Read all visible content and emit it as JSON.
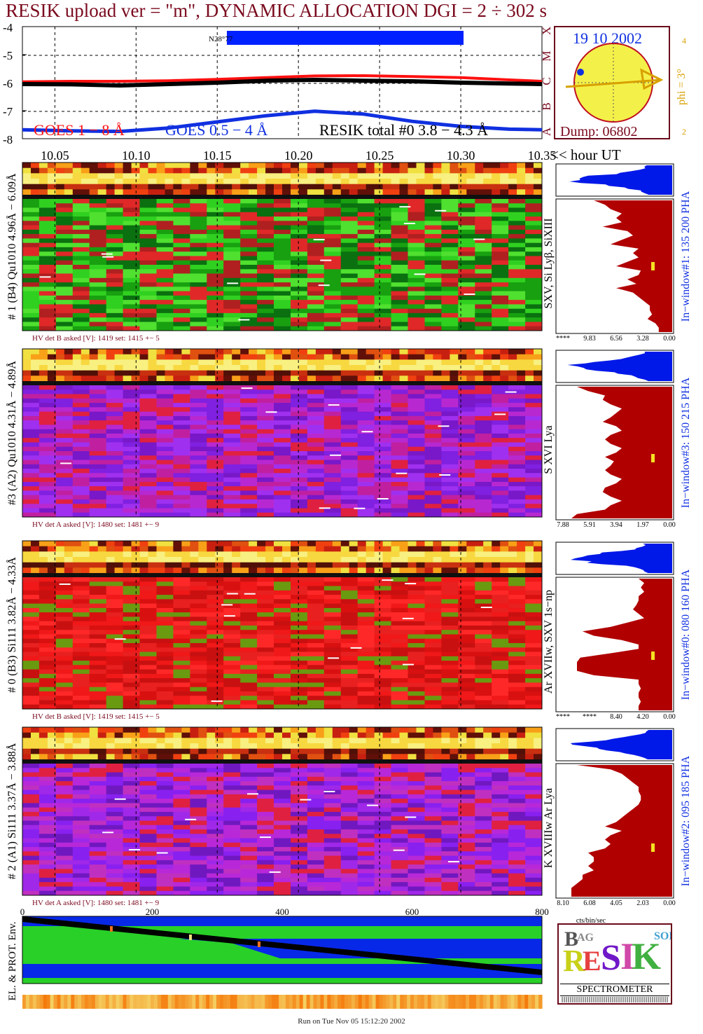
{
  "title": "RESIK upload ver = \"m\", DYNAMIC ALLOCATION  DGI =   2 ÷ 302 s",
  "footer": "Run on Tue Nov 05 15:12:20 2002",
  "colors": {
    "title": "#7a0a1e",
    "goes1": "#ff1010",
    "goes05": "#1030e0",
    "resik": "#000000",
    "spectrum": "#b00000",
    "pha_top": "#0018e8",
    "bar": "#0020ff"
  },
  "top_panel": {
    "yticks": [
      "-4",
      "-5",
      "-6",
      "-7",
      "-8"
    ],
    "class_labels": [
      "X",
      "M",
      "C",
      "B",
      "A"
    ],
    "bar_label": "N28°77",
    "legend": {
      "goes1": "GOES 1 − 8 Å",
      "goes05": "GOES 0.5 − 4 Å",
      "resik": "RESIK total #0  3.8 − 4.3 Å"
    },
    "xticks": [
      "10.05",
      "10.10",
      "10.15",
      "10.20",
      "10.25",
      "10.30",
      "10.35"
    ],
    "x_unit": "<< hour UT"
  },
  "sun_panel": {
    "date": "19 10 2002",
    "dump": "Dump: 06802",
    "phi": "phi =  3°",
    "tick_top": "4",
    "tick_bottom": "2"
  },
  "chart_data": {
    "type": "line",
    "x": [
      10.03,
      10.06,
      10.09,
      10.12,
      10.15,
      10.18,
      10.21,
      10.24,
      10.27,
      10.3,
      10.33,
      10.35
    ],
    "series": [
      {
        "name": "GOES 1 − 8 Å",
        "values": [
          -5.97,
          -5.95,
          -5.95,
          -5.93,
          -5.88,
          -5.82,
          -5.76,
          -5.75,
          -5.78,
          -5.82,
          -5.9,
          -5.95
        ]
      },
      {
        "name": "GOES 0.5 − 4 Å",
        "values": [
          -7.68,
          -7.72,
          -7.74,
          -7.62,
          -7.4,
          -7.18,
          -7.02,
          -7.12,
          -7.38,
          -7.56,
          -7.66,
          -7.68
        ]
      },
      {
        "name": "RESIK total #0  3.8 − 4.3 Å",
        "values": [
          -6.05,
          -6.06,
          -6.1,
          -6.05,
          -6.0,
          -5.93,
          -5.9,
          -5.93,
          -5.95,
          -6.0,
          -6.03,
          -6.05
        ]
      }
    ],
    "ylim": [
      -8,
      -4
    ]
  },
  "panels": [
    {
      "left_label": "# 1 (B4) Qu1010 4.96Å − 6.09Å",
      "right_label": "SXV, Si Lyβ, SiXIII",
      "window_label": "In−window#1:  135 200 PHA",
      "hv": "HV det B asked [V]:  1419 set:  1415 +−    5",
      "axis": [
        "****",
        "9.83",
        "6.56",
        "3.28",
        "0.00"
      ],
      "scheme": "green",
      "spectrum": [
        0.7,
        0.6,
        0.55,
        0.45,
        0.5,
        0.45,
        0.62,
        0.4,
        0.35,
        0.45,
        0.55,
        0.3,
        0.35,
        0.3,
        0.4,
        0.5,
        0.28,
        0.3,
        0.4,
        0.32,
        0.5,
        0.35,
        0.3,
        0.25,
        0.2,
        0.2,
        0.18,
        0.22,
        0.15,
        0.12,
        0.12
      ]
    },
    {
      "left_label": "#3 (A2) Qu1010  4.31Å − 4.89Å",
      "right_label": "S XVI Lya",
      "window_label": "In−window#3:  150 215 PHA",
      "hv": "HV det A asked [V]:  1480 set:  1481 +−    9",
      "axis": [
        "7.88",
        "5.91",
        "3.94",
        "1.97",
        "0.00"
      ],
      "scheme": "purple",
      "spectrum": [
        0.85,
        0.75,
        0.6,
        0.62,
        0.55,
        0.45,
        0.5,
        0.55,
        0.62,
        0.5,
        0.45,
        0.55,
        0.6,
        0.55,
        0.45,
        0.5,
        0.6,
        0.52,
        0.55,
        0.6,
        0.55,
        0.45,
        0.5,
        0.6,
        0.62,
        0.55,
        0.45,
        0.55,
        0.6,
        0.85,
        0.9
      ]
    },
    {
      "left_label": "# 0 (B3) Si111  3.82Å − 4.33Å",
      "right_label": "Ar XVIIw, SXV 1s−np",
      "window_label": "In−window#0:  080 160 PHA",
      "hv": "HV det B asked [V]:  1419 set:  1415 +−    5",
      "axis": [
        "****",
        "****",
        "8.40",
        "4.20",
        "0.00"
      ],
      "scheme": "red",
      "spectrum": [
        0.3,
        0.25,
        0.28,
        0.25,
        0.3,
        0.3,
        0.32,
        0.35,
        0.3,
        0.25,
        0.4,
        0.55,
        0.8,
        0.7,
        0.45,
        0.3,
        0.3,
        0.55,
        0.82,
        0.85,
        0.85,
        0.85,
        0.7,
        0.3,
        0.3,
        0.28,
        0.3,
        0.3,
        0.28,
        0.3,
        0.3
      ]
    },
    {
      "left_label": "# 2 (A1) Si111  3.37Å − 3.88Å",
      "right_label": "K XVIIIw  Ar Lya",
      "window_label": "In−window#2:  095 185 PHA",
      "hv": "HV det A asked [V]:  1480 set:  1481 +−    9",
      "axis": [
        "8.10",
        "6.08",
        "4.05",
        "2.03",
        "0.00"
      ],
      "scheme": "purple2",
      "spectrum": [
        0.85,
        0.55,
        0.45,
        0.4,
        0.35,
        0.3,
        0.3,
        0.28,
        0.28,
        0.3,
        0.35,
        0.4,
        0.45,
        0.5,
        0.6,
        0.45,
        0.55,
        0.6,
        0.55,
        0.6,
        0.75,
        0.7,
        0.7,
        0.75,
        0.7,
        0.8,
        0.8,
        0.85,
        0.9,
        0.9,
        0.9
      ]
    }
  ],
  "bottom": {
    "left_label": "EL. & PROT. Env.",
    "xticks": [
      "0",
      "200",
      "400",
      "600",
      "800"
    ],
    "axis_unit": "cts/bin/sec"
  },
  "logo": {
    "text": "SPECTROMETER"
  }
}
